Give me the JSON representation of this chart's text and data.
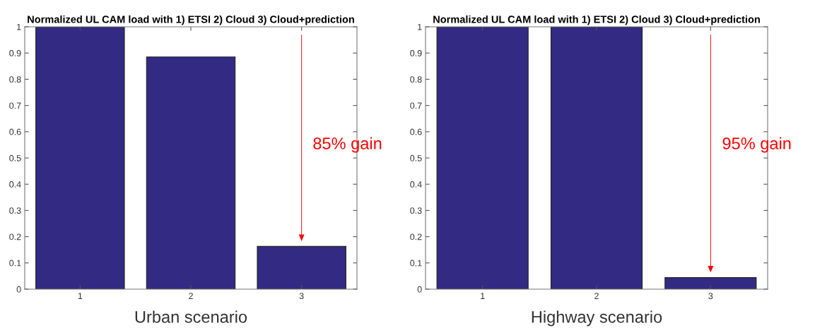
{
  "chart_data": [
    {
      "type": "bar",
      "title": "Normalized UL CAM load with 1) ETSI 2) Cloud 3) Cloud+prediction",
      "xlabel": "Urban scenario",
      "categories": [
        "1",
        "2",
        "3"
      ],
      "values": [
        1,
        0.885,
        0.163
      ],
      "color": "#332a84",
      "ylim": [
        0,
        1
      ],
      "yticks": [
        0,
        0.1,
        0.2,
        0.3,
        0.4,
        0.5,
        0.6,
        0.7,
        0.8,
        0.9,
        1
      ],
      "grid": false,
      "annotations": [
        "85% gain"
      ]
    },
    {
      "type": "bar",
      "title": "Normalized UL CAM load with 1) ETSI 2) Cloud 3) Cloud+prediction",
      "xlabel": "Highway scenario",
      "categories": [
        "1",
        "2",
        "3"
      ],
      "values": [
        1,
        1,
        0.044
      ],
      "color": "#332a84",
      "ylim": [
        0,
        1
      ],
      "yticks": [
        0,
        0.1,
        0.2,
        0.3,
        0.4,
        0.5,
        0.6,
        0.7,
        0.8,
        0.9,
        1
      ],
      "grid": false,
      "annotations": [
        "95% gain"
      ]
    }
  ]
}
